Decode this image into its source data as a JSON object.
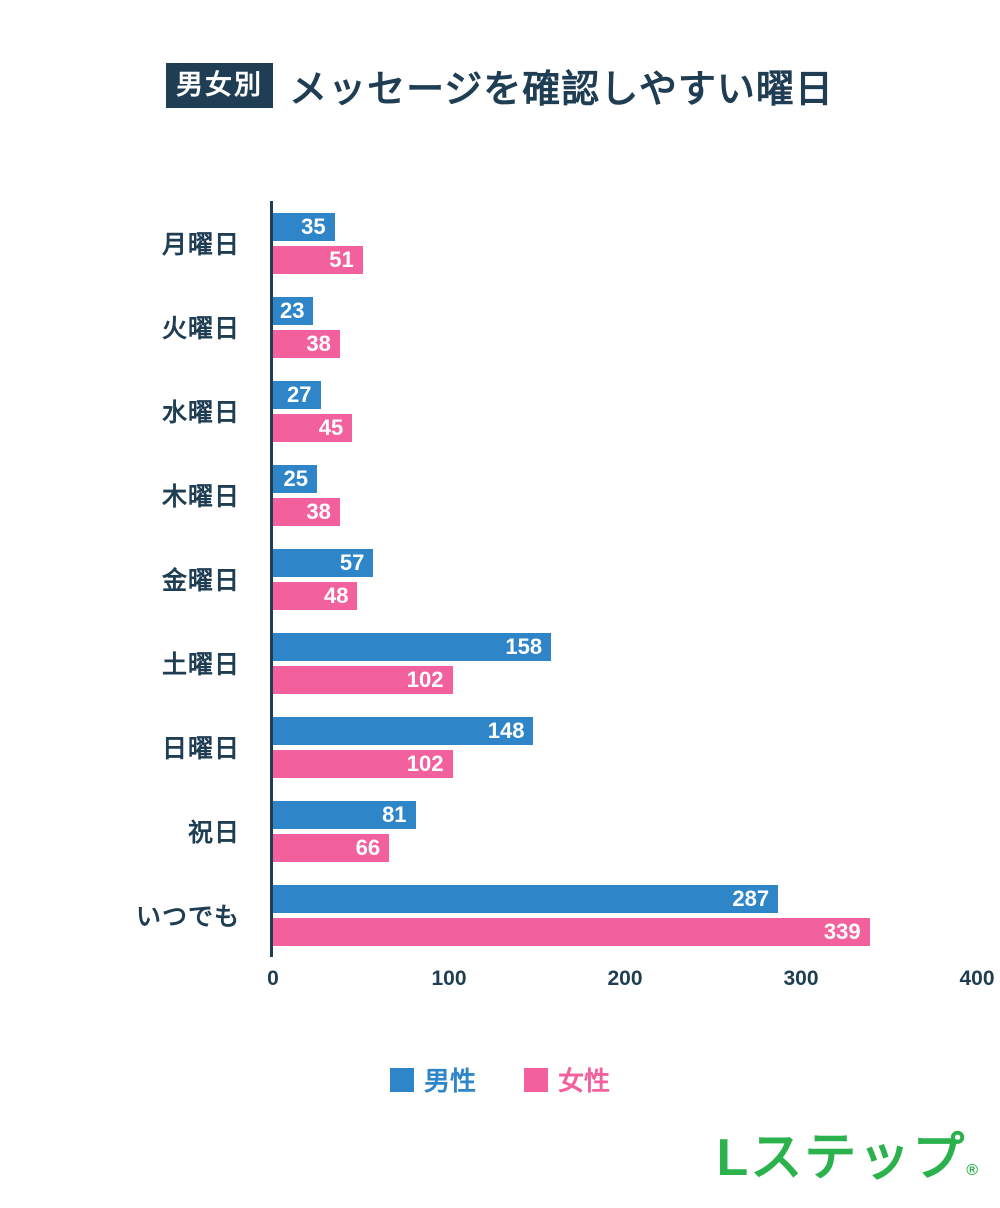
{
  "header": {
    "badge": "男女別",
    "title": "メッセージを確認しやすい曜日"
  },
  "chart_data": {
    "type": "bar",
    "orientation": "horizontal",
    "title": "メッセージを確認しやすい曜日",
    "title_badge": "男女別",
    "categories": [
      "月曜日",
      "火曜日",
      "水曜日",
      "木曜日",
      "金曜日",
      "土曜日",
      "日曜日",
      "祝日",
      "いつでも"
    ],
    "series": [
      {
        "name": "男性",
        "color": "#2e86c8",
        "values": [
          35,
          23,
          27,
          25,
          57,
          158,
          148,
          81,
          287
        ]
      },
      {
        "name": "女性",
        "color": "#f2609e",
        "values": [
          51,
          38,
          45,
          38,
          48,
          102,
          102,
          66,
          339
        ]
      }
    ],
    "xlim": [
      0,
      400
    ],
    "x_ticks": [
      0,
      100,
      200,
      300,
      400
    ],
    "grid": false,
    "legend_position": "bottom",
    "value_labels": "inside-end"
  },
  "logo": {
    "text": "Lステップ",
    "registered": "®",
    "color": "#2bb24c"
  },
  "colors": {
    "navy": "#1f3e53",
    "male_blue": "#2e86c8",
    "female_pink": "#f2609e",
    "logo_green": "#2bb24c",
    "background": "#ffffff"
  }
}
